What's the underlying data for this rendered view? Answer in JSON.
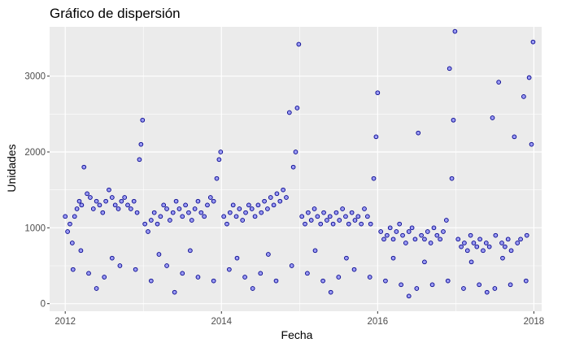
{
  "chart_data": {
    "type": "scatter",
    "title": "Gráfico de dispersión",
    "xlabel": "Fecha",
    "ylabel": "Unidades",
    "xlim": [
      2011.8,
      2018.1
    ],
    "ylim": [
      -100,
      3650
    ],
    "x_ticks": [
      2012,
      2014,
      2016,
      2018
    ],
    "x_tick_labels": [
      "2012",
      "2014",
      "2016",
      "2018"
    ],
    "y_ticks": [
      0,
      1000,
      2000,
      3000
    ],
    "y_tick_labels": [
      "0",
      "1000",
      "2000",
      "3000"
    ],
    "grid": true,
    "legend": "none",
    "colors": {
      "panel": "#ebebeb",
      "grid": "#ffffff",
      "point_fill": "#7f7ff5",
      "point_stroke": "#00008b"
    },
    "series": [
      {
        "values": [
          [
            2012.0,
            1150
          ],
          [
            2012.03,
            950
          ],
          [
            2012.06,
            1050
          ],
          [
            2012.09,
            800
          ],
          [
            2012.12,
            1150
          ],
          [
            2012.15,
            1250
          ],
          [
            2012.18,
            1350
          ],
          [
            2012.21,
            1300
          ],
          [
            2012.24,
            1800
          ],
          [
            2012.28,
            1450
          ],
          [
            2012.32,
            1400
          ],
          [
            2012.36,
            1250
          ],
          [
            2012.4,
            1350
          ],
          [
            2012.44,
            1300
          ],
          [
            2012.48,
            1200
          ],
          [
            2012.52,
            1350
          ],
          [
            2012.56,
            1500
          ],
          [
            2012.6,
            1400
          ],
          [
            2012.64,
            1300
          ],
          [
            2012.68,
            1250
          ],
          [
            2012.72,
            1350
          ],
          [
            2012.76,
            1400
          ],
          [
            2012.8,
            1300
          ],
          [
            2012.84,
            1250
          ],
          [
            2012.88,
            1350
          ],
          [
            2012.92,
            1200
          ],
          [
            2012.95,
            1900
          ],
          [
            2012.97,
            2100
          ],
          [
            2012.99,
            2420
          ],
          [
            2013.02,
            1050
          ],
          [
            2013.06,
            950
          ],
          [
            2013.1,
            1100
          ],
          [
            2013.14,
            1200
          ],
          [
            2013.18,
            1050
          ],
          [
            2013.22,
            1150
          ],
          [
            2013.26,
            1300
          ],
          [
            2013.3,
            1250
          ],
          [
            2013.34,
            1100
          ],
          [
            2013.38,
            1200
          ],
          [
            2013.42,
            1350
          ],
          [
            2013.46,
            1250
          ],
          [
            2013.5,
            1150
          ],
          [
            2013.54,
            1300
          ],
          [
            2013.58,
            1200
          ],
          [
            2013.62,
            1100
          ],
          [
            2013.66,
            1250
          ],
          [
            2013.7,
            1350
          ],
          [
            2013.74,
            1200
          ],
          [
            2013.78,
            1150
          ],
          [
            2013.82,
            1300
          ],
          [
            2013.86,
            1400
          ],
          [
            2013.9,
            1350
          ],
          [
            2013.94,
            1650
          ],
          [
            2013.97,
            1900
          ],
          [
            2013.99,
            2000
          ],
          [
            2014.03,
            1150
          ],
          [
            2014.07,
            1050
          ],
          [
            2014.11,
            1200
          ],
          [
            2014.15,
            1300
          ],
          [
            2014.19,
            1150
          ],
          [
            2014.23,
            1250
          ],
          [
            2014.27,
            1100
          ],
          [
            2014.31,
            1200
          ],
          [
            2014.35,
            1300
          ],
          [
            2014.39,
            1250
          ],
          [
            2014.43,
            1150
          ],
          [
            2014.47,
            1300
          ],
          [
            2014.51,
            1200
          ],
          [
            2014.55,
            1350
          ],
          [
            2014.59,
            1250
          ],
          [
            2014.63,
            1400
          ],
          [
            2014.67,
            1300
          ],
          [
            2014.71,
            1450
          ],
          [
            2014.75,
            1350
          ],
          [
            2014.79,
            1500
          ],
          [
            2014.83,
            1400
          ],
          [
            2014.87,
            2520
          ],
          [
            2014.92,
            1800
          ],
          [
            2014.95,
            2000
          ],
          [
            2014.97,
            2580
          ],
          [
            2014.99,
            3420
          ],
          [
            2015.03,
            1150
          ],
          [
            2015.07,
            1050
          ],
          [
            2015.11,
            1200
          ],
          [
            2015.15,
            1100
          ],
          [
            2015.19,
            1250
          ],
          [
            2015.23,
            1150
          ],
          [
            2015.27,
            1050
          ],
          [
            2015.31,
            1200
          ],
          [
            2015.35,
            1100
          ],
          [
            2015.39,
            1150
          ],
          [
            2015.43,
            1050
          ],
          [
            2015.47,
            1200
          ],
          [
            2015.51,
            1100
          ],
          [
            2015.55,
            1250
          ],
          [
            2015.59,
            1150
          ],
          [
            2015.63,
            1050
          ],
          [
            2015.67,
            1200
          ],
          [
            2015.71,
            1100
          ],
          [
            2015.75,
            1150
          ],
          [
            2015.79,
            1050
          ],
          [
            2015.83,
            1250
          ],
          [
            2015.87,
            1150
          ],
          [
            2015.91,
            1050
          ],
          [
            2015.95,
            1650
          ],
          [
            2015.98,
            2200
          ],
          [
            2016.0,
            2780
          ],
          [
            2016.04,
            950
          ],
          [
            2016.08,
            850
          ],
          [
            2016.12,
            900
          ],
          [
            2016.16,
            1000
          ],
          [
            2016.2,
            850
          ],
          [
            2016.24,
            950
          ],
          [
            2016.28,
            1050
          ],
          [
            2016.32,
            900
          ],
          [
            2016.36,
            800
          ],
          [
            2016.4,
            950
          ],
          [
            2016.44,
            1000
          ],
          [
            2016.48,
            850
          ],
          [
            2016.52,
            2250
          ],
          [
            2016.56,
            900
          ],
          [
            2016.6,
            850
          ],
          [
            2016.64,
            950
          ],
          [
            2016.68,
            800
          ],
          [
            2016.72,
            1000
          ],
          [
            2016.76,
            900
          ],
          [
            2016.8,
            850
          ],
          [
            2016.84,
            950
          ],
          [
            2016.88,
            1100
          ],
          [
            2016.92,
            3100
          ],
          [
            2016.95,
            1650
          ],
          [
            2016.97,
            2420
          ],
          [
            2016.99,
            3590
          ],
          [
            2017.03,
            850
          ],
          [
            2017.07,
            750
          ],
          [
            2017.11,
            800
          ],
          [
            2017.15,
            700
          ],
          [
            2017.19,
            900
          ],
          [
            2017.23,
            800
          ],
          [
            2017.27,
            750
          ],
          [
            2017.31,
            850
          ],
          [
            2017.35,
            700
          ],
          [
            2017.39,
            800
          ],
          [
            2017.43,
            750
          ],
          [
            2017.47,
            2450
          ],
          [
            2017.51,
            900
          ],
          [
            2017.55,
            2920
          ],
          [
            2017.59,
            800
          ],
          [
            2017.63,
            750
          ],
          [
            2017.67,
            850
          ],
          [
            2017.71,
            700
          ],
          [
            2017.75,
            2200
          ],
          [
            2017.79,
            800
          ],
          [
            2017.83,
            850
          ],
          [
            2017.87,
            2730
          ],
          [
            2017.91,
            900
          ],
          [
            2017.94,
            2980
          ],
          [
            2017.97,
            2100
          ],
          [
            2017.99,
            3450
          ],
          [
            2012.1,
            450
          ],
          [
            2012.3,
            400
          ],
          [
            2012.5,
            350
          ],
          [
            2012.7,
            500
          ],
          [
            2012.9,
            450
          ],
          [
            2013.1,
            300
          ],
          [
            2013.3,
            500
          ],
          [
            2013.5,
            400
          ],
          [
            2013.7,
            350
          ],
          [
            2013.9,
            300
          ],
          [
            2014.1,
            450
          ],
          [
            2014.3,
            350
          ],
          [
            2014.5,
            400
          ],
          [
            2014.7,
            300
          ],
          [
            2014.9,
            500
          ],
          [
            2015.1,
            400
          ],
          [
            2015.3,
            300
          ],
          [
            2015.5,
            350
          ],
          [
            2015.7,
            450
          ],
          [
            2015.9,
            350
          ],
          [
            2016.1,
            300
          ],
          [
            2016.3,
            250
          ],
          [
            2016.5,
            200
          ],
          [
            2016.7,
            250
          ],
          [
            2016.9,
            300
          ],
          [
            2017.1,
            200
          ],
          [
            2017.3,
            250
          ],
          [
            2017.5,
            200
          ],
          [
            2017.7,
            250
          ],
          [
            2017.9,
            300
          ],
          [
            2012.2,
            700
          ],
          [
            2012.6,
            600
          ],
          [
            2013.2,
            650
          ],
          [
            2013.6,
            700
          ],
          [
            2014.2,
            600
          ],
          [
            2014.6,
            650
          ],
          [
            2015.2,
            700
          ],
          [
            2015.6,
            600
          ],
          [
            2016.2,
            600
          ],
          [
            2016.6,
            550
          ],
          [
            2017.2,
            550
          ],
          [
            2017.6,
            600
          ],
          [
            2012.4,
            200
          ],
          [
            2013.4,
            150
          ],
          [
            2014.4,
            200
          ],
          [
            2015.4,
            150
          ],
          [
            2016.4,
            100
          ],
          [
            2017.4,
            150
          ]
        ]
      }
    ]
  }
}
